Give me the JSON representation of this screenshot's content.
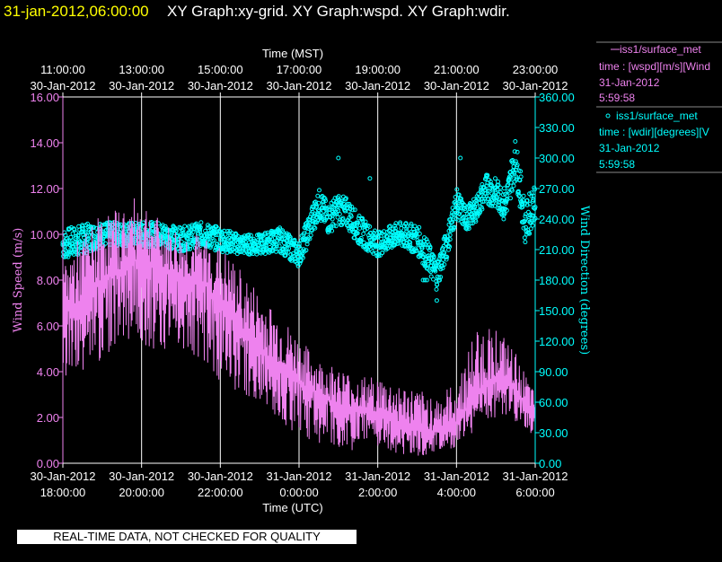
{
  "header": {
    "date": "31-jan-2012,06:00:00",
    "title": " XY Graph:xy-grid.  XY Graph:wspd.  XY Graph:wdir."
  },
  "notice": "REAL-TIME DATA, NOT CHECKED FOR QUALITY",
  "legend": [
    {
      "line1": "iss1/surface_met",
      "line2": "time : [wspd][m/s][Wind",
      "line3": "31-Jan-2012",
      "line4": "5:59:58",
      "color": "#ee82ee",
      "marker": "line"
    },
    {
      "line1": "iss1/surface_met",
      "line2": "time : [wdir][degrees][V",
      "line3": "31-Jan-2012",
      "line4": "5:59:58",
      "color": "#00ffff",
      "marker": "circle"
    }
  ],
  "chart_data": {
    "type": "line",
    "xlabel_top": "Time (MST)",
    "xlabel_bottom": "Time (UTC)",
    "ylabel_left": "Wind Speed (m/s)",
    "ylabel_right": "Wind Direction (degrees)",
    "x_range_utc_hours": [
      18,
      30
    ],
    "top_ticks": [
      {
        "time": "11:00:00",
        "date": "30-Jan-2012"
      },
      {
        "time": "13:00:00",
        "date": "30-Jan-2012"
      },
      {
        "time": "15:00:00",
        "date": "30-Jan-2012"
      },
      {
        "time": "17:00:00",
        "date": "30-Jan-2012"
      },
      {
        "time": "19:00:00",
        "date": "30-Jan-2012"
      },
      {
        "time": "21:00:00",
        "date": "30-Jan-2012"
      },
      {
        "time": "23:00:00",
        "date": "30-Jan-2012"
      }
    ],
    "bottom_ticks": [
      {
        "time": "18:00:00",
        "date": "30-Jan-2012"
      },
      {
        "time": "20:00:00",
        "date": "30-Jan-2012"
      },
      {
        "time": "22:00:00",
        "date": "30-Jan-2012"
      },
      {
        "time": "0:00:00",
        "date": "31-Jan-2012"
      },
      {
        "time": "2:00:00",
        "date": "31-Jan-2012"
      },
      {
        "time": "4:00:00",
        "date": "31-Jan-2012"
      },
      {
        "time": "6:00:00",
        "date": "31-Jan-2012"
      }
    ],
    "y_left": {
      "range": [
        0,
        16
      ],
      "ticks": [
        "0.00",
        "2.00",
        "4.00",
        "6.00",
        "8.00",
        "10.00",
        "12.00",
        "14.00",
        "16.00"
      ]
    },
    "y_right": {
      "range": [
        0,
        360
      ],
      "ticks": [
        "0.00",
        "30.00",
        "60.00",
        "90.00",
        "120.00",
        "150.00",
        "180.00",
        "210.00",
        "240.00",
        "270.00",
        "300.00",
        "330.00",
        "360.00"
      ]
    },
    "grid": "vertical",
    "series": [
      {
        "name": "iss1/surface_met wspd",
        "axis": "left",
        "color": "#ee82ee",
        "x_utc_hours": [
          18.0,
          18.5,
          19.0,
          19.5,
          20.0,
          20.5,
          21.0,
          21.5,
          22.0,
          22.5,
          23.0,
          23.5,
          24.0,
          24.5,
          25.0,
          25.5,
          26.0,
          26.5,
          27.0,
          27.5,
          28.0,
          28.5,
          29.0,
          29.5,
          30.0
        ],
        "mean": [
          6.5,
          7.0,
          8.0,
          8.5,
          9.0,
          8.5,
          8.0,
          8.0,
          7.0,
          6.0,
          5.0,
          4.2,
          3.5,
          3.0,
          2.6,
          2.3,
          2.2,
          1.8,
          1.5,
          1.4,
          1.8,
          3.0,
          3.8,
          3.2,
          2.0
        ],
        "min": [
          3.5,
          4.0,
          4.5,
          5.5,
          5.0,
          5.0,
          5.0,
          4.5,
          3.5,
          3.0,
          2.5,
          1.8,
          1.2,
          0.8,
          0.5,
          0.6,
          0.5,
          0.4,
          0.3,
          0.4,
          0.6,
          1.5,
          2.0,
          1.5,
          1.2
        ],
        "max": [
          9.0,
          10.0,
          11.0,
          11.2,
          11.8,
          10.5,
          10.2,
          10.0,
          9.5,
          8.5,
          7.5,
          6.5,
          5.5,
          4.5,
          4.2,
          3.8,
          3.8,
          3.5,
          3.2,
          3.0,
          3.5,
          6.0,
          6.0,
          4.8,
          3.0
        ]
      },
      {
        "name": "iss1/surface_met wdir",
        "axis": "right",
        "color": "#00ffff",
        "x_utc_hours": [
          18.0,
          18.5,
          19.0,
          19.5,
          20.0,
          20.5,
          21.0,
          21.5,
          22.0,
          22.5,
          23.0,
          23.5,
          24.0,
          24.25,
          24.5,
          24.75,
          25.0,
          25.25,
          25.5,
          26.0,
          26.5,
          27.0,
          27.25,
          27.5,
          27.75,
          28.0,
          28.25,
          28.5,
          28.75,
          29.0,
          29.25,
          29.5,
          29.75,
          30.0
        ],
        "mean": [
          215,
          220,
          225,
          225,
          225,
          225,
          220,
          225,
          220,
          215,
          215,
          220,
          205,
          230,
          255,
          240,
          250,
          245,
          230,
          215,
          225,
          220,
          205,
          185,
          215,
          255,
          240,
          250,
          270,
          265,
          255,
          300,
          235,
          260
        ],
        "spread": [
          15,
          15,
          12,
          12,
          12,
          12,
          12,
          12,
          12,
          10,
          10,
          12,
          12,
          15,
          15,
          15,
          15,
          15,
          15,
          12,
          12,
          15,
          15,
          15,
          15,
          15,
          12,
          12,
          15,
          15,
          15,
          20,
          20,
          20
        ],
        "outliers": [
          [
            25.0,
            300
          ],
          [
            25.8,
            280
          ],
          [
            27.15,
            180
          ],
          [
            27.2,
            180
          ],
          [
            27.25,
            180
          ],
          [
            28.1,
            300
          ],
          [
            29.2,
            240
          ],
          [
            27.5,
            160
          ]
        ]
      }
    ]
  }
}
